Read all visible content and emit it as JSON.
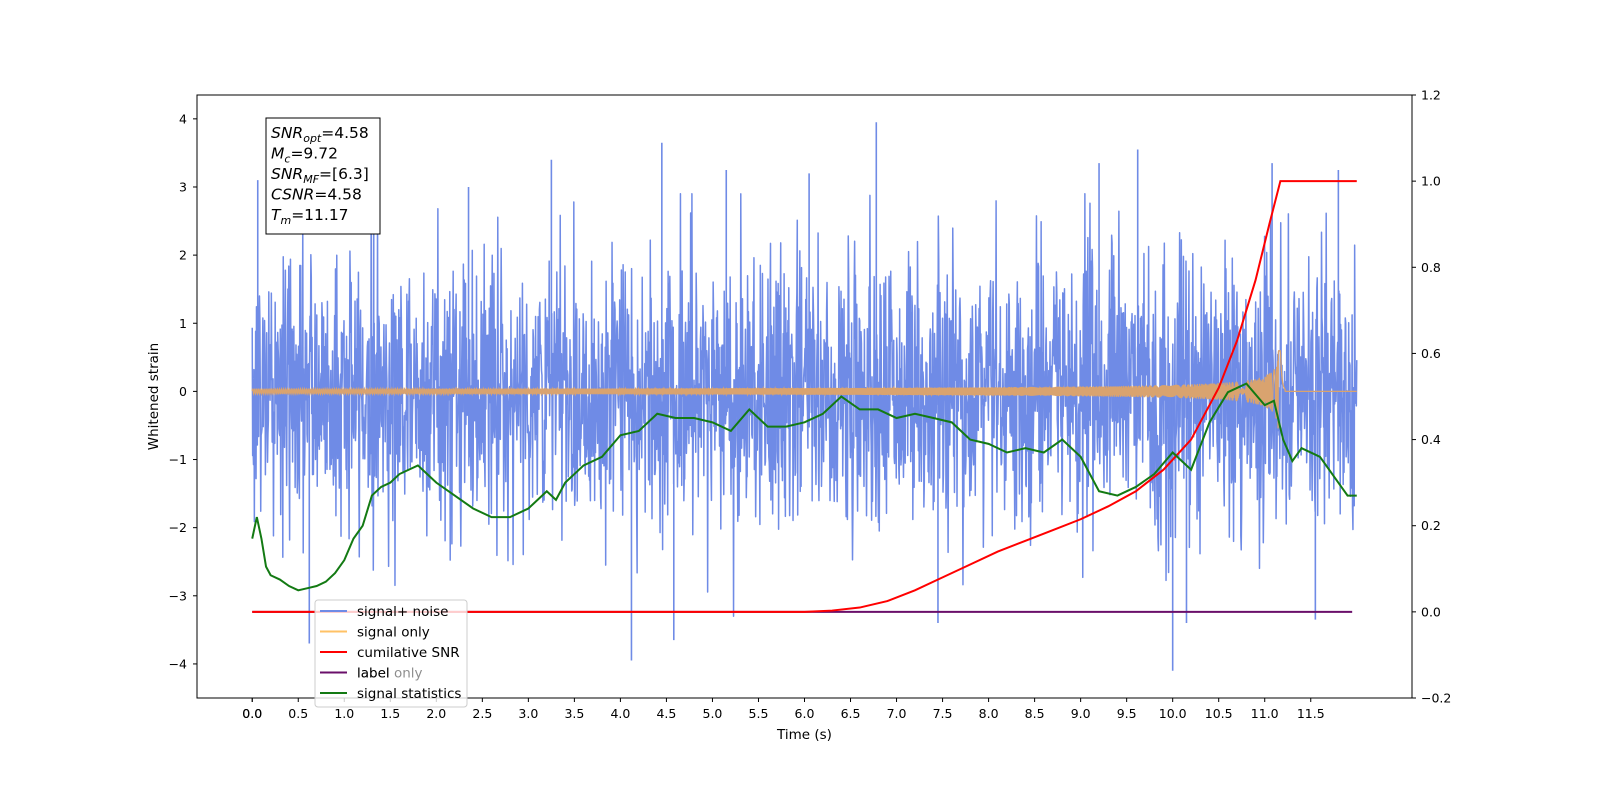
{
  "chart_data": {
    "type": "line",
    "xlabel": "Time (s)",
    "ylabel_left": "Whitened strain",
    "ylabel_right": "",
    "xlim": [
      -0.6,
      12.6
    ],
    "ylim_left": [
      -4.5,
      4.35
    ],
    "ylim_right": [
      -0.2,
      1.2
    ],
    "x_ticks": [
      "0.0",
      "0.0",
      "0.5",
      "1.0",
      "1.5",
      "2.0",
      "2.5",
      "3.0",
      "3.5",
      "4.0",
      "4.5",
      "5.0",
      "5.5",
      "6.0",
      "6.5",
      "7.0",
      "7.5",
      "8.0",
      "8.5",
      "9.0",
      "9.5",
      "10.0",
      "10.5",
      "11.0",
      "11.5"
    ],
    "x_tick_values": [
      0.0,
      0.0,
      0.5,
      1.0,
      1.5,
      2.0,
      2.5,
      3.0,
      3.5,
      4.0,
      4.5,
      5.0,
      5.5,
      6.0,
      6.5,
      7.0,
      7.5,
      8.0,
      8.5,
      9.0,
      9.5,
      10.0,
      10.5,
      11.0,
      11.5
    ],
    "y_ticks_left": [
      4,
      3,
      2,
      1,
      0,
      -1,
      -2,
      -3,
      -4
    ],
    "y_ticks_right": [
      "1.2",
      "1.0",
      "0.8",
      "0.6",
      "0.4",
      "0.2",
      "0.0",
      "-0.2"
    ],
    "y_tick_values_right": [
      1.2,
      1.0,
      0.8,
      0.6,
      0.4,
      0.2,
      0.0,
      -0.2
    ],
    "legend_position": "bottom-left",
    "series": [
      {
        "name": "signal+ noise",
        "axis": "left",
        "color": "#6f8be6",
        "x_range": [
          0.0,
          12.0
        ],
        "approx_range": [
          -4.1,
          3.95
        ],
        "peaks": [
          [
            0.06,
            3.1
          ],
          [
            0.62,
            -3.7
          ],
          [
            1.32,
            2.95
          ],
          [
            2.35,
            3.0
          ],
          [
            3.25,
            3.4
          ],
          [
            4.12,
            -3.95
          ],
          [
            4.45,
            3.65
          ],
          [
            4.58,
            -3.65
          ],
          [
            5.15,
            3.25
          ],
          [
            6.05,
            3.2
          ],
          [
            6.78,
            3.95
          ],
          [
            7.45,
            -3.4
          ],
          [
            9.2,
            3.35
          ],
          [
            9.62,
            3.55
          ],
          [
            10.0,
            -4.1
          ],
          [
            10.15,
            -3.4
          ],
          [
            11.08,
            3.35
          ],
          [
            11.55,
            -3.35
          ],
          [
            11.8,
            3.25
          ]
        ]
      },
      {
        "name": "signal only",
        "axis": "left",
        "color": "#d9a36f",
        "x_range": [
          0.0,
          12.0
        ],
        "merger_time": 11.17,
        "peak_amplitude": 0.6
      },
      {
        "name": "cumilative SNR",
        "axis": "right",
        "color": "#ff0000",
        "x": [
          0.0,
          6.0,
          6.3,
          6.6,
          6.9,
          7.2,
          7.5,
          7.8,
          8.1,
          8.4,
          8.7,
          9.0,
          9.3,
          9.6,
          9.9,
          10.2,
          10.5,
          10.7,
          10.9,
          11.05,
          11.17,
          11.18,
          12.0
        ],
        "y": [
          0.0,
          0.0,
          0.003,
          0.01,
          0.025,
          0.05,
          0.08,
          0.11,
          0.14,
          0.165,
          0.19,
          0.215,
          0.245,
          0.28,
          0.33,
          0.4,
          0.52,
          0.63,
          0.77,
          0.9,
          1.0,
          1.0,
          1.0
        ]
      },
      {
        "name": "label",
        "axis": "right",
        "color": "#6a0f6a",
        "x": [
          0.0,
          11.95
        ],
        "y": [
          0.0,
          0.0
        ]
      },
      {
        "name": "signal statistics",
        "axis": "right",
        "color": "#137a13",
        "x": [
          0.0,
          0.05,
          0.1,
          0.15,
          0.2,
          0.3,
          0.4,
          0.5,
          0.6,
          0.7,
          0.8,
          0.9,
          1.0,
          1.1,
          1.2,
          1.3,
          1.4,
          1.5,
          1.6,
          1.7,
          1.8,
          1.9,
          2.0,
          2.2,
          2.4,
          2.6,
          2.8,
          3.0,
          3.1,
          3.2,
          3.3,
          3.4,
          3.6,
          3.8,
          4.0,
          4.2,
          4.4,
          4.6,
          4.8,
          5.0,
          5.2,
          5.4,
          5.6,
          5.8,
          6.0,
          6.2,
          6.4,
          6.6,
          6.8,
          7.0,
          7.2,
          7.4,
          7.6,
          7.8,
          8.0,
          8.2,
          8.4,
          8.6,
          8.8,
          9.0,
          9.2,
          9.4,
          9.6,
          9.8,
          10.0,
          10.2,
          10.4,
          10.6,
          10.8,
          11.0,
          11.1,
          11.2,
          11.3,
          11.4,
          11.6,
          11.8,
          11.9,
          12.0
        ],
        "y": [
          0.17,
          0.22,
          0.17,
          0.105,
          0.085,
          0.075,
          0.06,
          0.05,
          0.055,
          0.06,
          0.07,
          0.09,
          0.12,
          0.17,
          0.2,
          0.27,
          0.29,
          0.3,
          0.32,
          0.33,
          0.34,
          0.32,
          0.3,
          0.27,
          0.24,
          0.22,
          0.22,
          0.24,
          0.26,
          0.28,
          0.26,
          0.3,
          0.34,
          0.36,
          0.41,
          0.42,
          0.46,
          0.45,
          0.45,
          0.44,
          0.42,
          0.47,
          0.43,
          0.43,
          0.44,
          0.46,
          0.5,
          0.47,
          0.47,
          0.45,
          0.46,
          0.45,
          0.44,
          0.4,
          0.39,
          0.37,
          0.38,
          0.37,
          0.4,
          0.36,
          0.28,
          0.27,
          0.29,
          0.32,
          0.37,
          0.33,
          0.44,
          0.51,
          0.53,
          0.48,
          0.49,
          0.4,
          0.35,
          0.38,
          0.36,
          0.3,
          0.27,
          0.27
        ]
      }
    ],
    "annotation": {
      "lines": [
        {
          "main": "SNR",
          "sub": "opt",
          "value": "=4.58"
        },
        {
          "main": "M",
          "sub": "c",
          "value": "=9.72"
        },
        {
          "main": "SNR",
          "sub": "MF",
          "value": "=[6.3]"
        },
        {
          "main": "CSNR",
          "sub": "",
          "value": "=4.58"
        },
        {
          "main": "T",
          "sub": "m",
          "value": "=11.17"
        }
      ]
    },
    "legend": [
      {
        "label": "signal+ noise",
        "color": "#6f8be6"
      },
      {
        "label": "signal only",
        "color": "#ffc266"
      },
      {
        "label": "cumilative SNR",
        "color": "#ff0000"
      },
      {
        "label": "label",
        "color": "#6a0f6a"
      },
      {
        "label": "signal statistics",
        "color": "#137a13"
      }
    ],
    "hidden_legend_text": [
      "label only"
    ]
  }
}
